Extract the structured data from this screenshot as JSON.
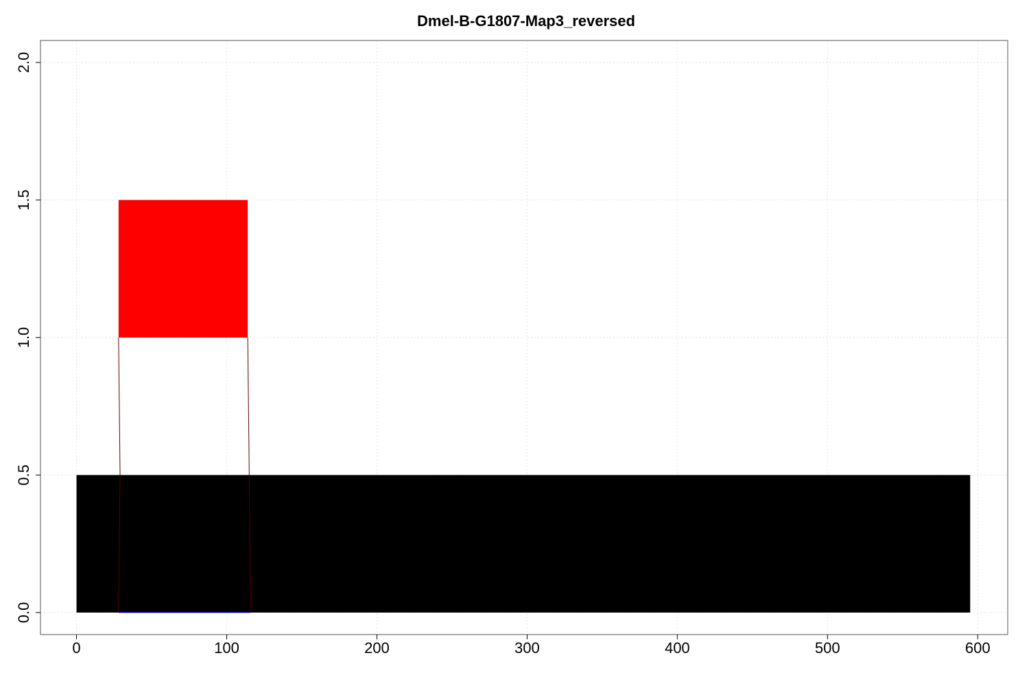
{
  "chart_data": {
    "type": "bar",
    "title": "Dmel-B-G1807-Map3_reversed",
    "xlabel": "",
    "ylabel": "",
    "xlim": [
      -24,
      620
    ],
    "ylim": [
      -0.08,
      2.08
    ],
    "xticks": [
      0,
      100,
      200,
      300,
      400,
      500,
      600
    ],
    "yticks": [
      0.0,
      0.5,
      1.0,
      1.5,
      2.0
    ],
    "ytick_labels": [
      "0.0",
      "0.5",
      "1.0",
      "1.5",
      "2.0"
    ],
    "grid": true,
    "legend": "none",
    "features": [
      {
        "x_start": 0,
        "x_end": 595,
        "y_bottom": 0.0,
        "y_top": 0.5,
        "color": "#000000"
      },
      {
        "x_start": 28,
        "x_end": 114,
        "y_bottom": 1.0,
        "y_top": 1.5,
        "color": "#ff0000"
      }
    ],
    "connectors": [
      {
        "points": [
          [
            28,
            1.0
          ],
          [
            29,
            0.5
          ],
          [
            28,
            0.0
          ]
        ],
        "color": "#5a0000"
      },
      {
        "points": [
          [
            114,
            1.0
          ],
          [
            115,
            0.5
          ],
          [
            116,
            0.0
          ]
        ],
        "color": "#5a0000"
      }
    ],
    "baseline_segment": {
      "x_start": 28,
      "x_end": 116,
      "y": 0.0,
      "color": "#0000ff"
    }
  }
}
